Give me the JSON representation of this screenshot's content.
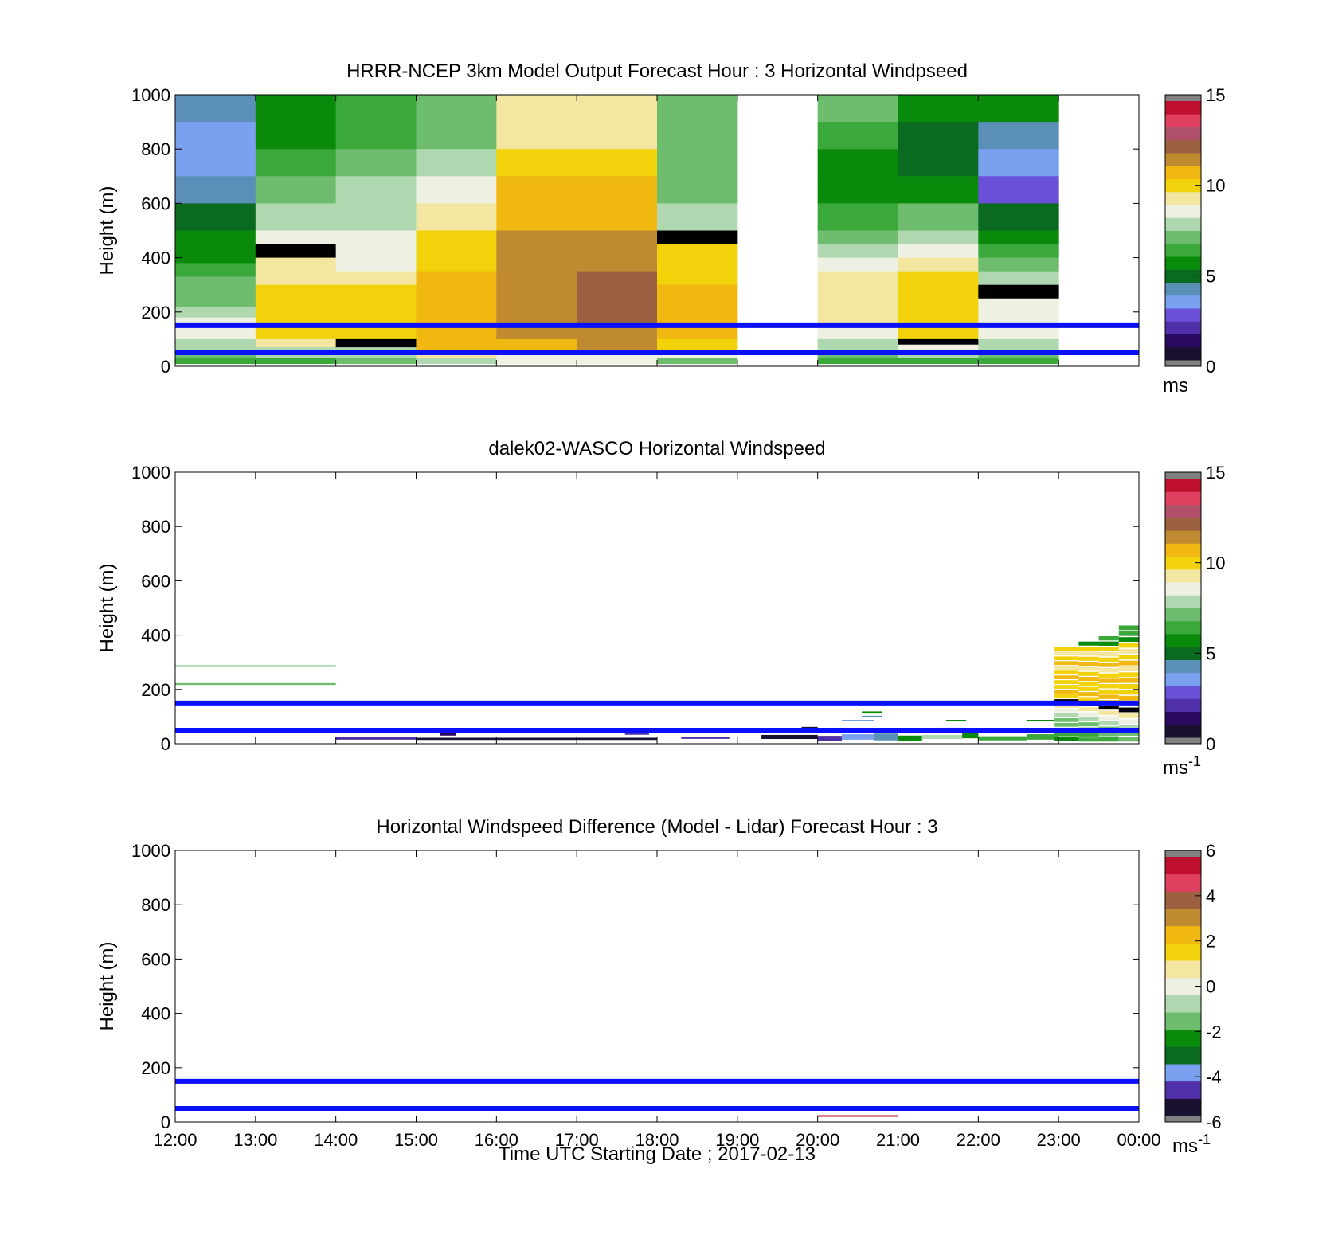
{
  "colors": {
    "line": "#0a10ff",
    "windspeed_scale": [
      "#1a1030",
      "#2a0a60",
      "#5030a8",
      "#6a50d8",
      "#7aa0f0",
      "#5a90b8",
      "#0a6a20",
      "#0a8a0a",
      "#3aa83a",
      "#6ebc6e",
      "#b0d8b0",
      "#eef0e2",
      "#f2e6a0",
      "#f2d20a",
      "#f0b810",
      "#c08a30",
      "#9a6040",
      "#b0506a",
      "#e04060",
      "#c01030"
    ],
    "difference_scale": [
      "#1a1030",
      "#5030a8",
      "#7aa0f0",
      "#0a6a20",
      "#0a8a0a",
      "#6ebc6e",
      "#b0d8b0",
      "#eef0e2",
      "#f2e6a0",
      "#f2d20a",
      "#f0b810",
      "#c08a30",
      "#9a6040",
      "#e04060",
      "#c01030"
    ]
  },
  "x_ticks": [
    "12:00",
    "13:00",
    "14:00",
    "15:00",
    "16:00",
    "17:00",
    "18:00",
    "19:00",
    "20:00",
    "21:00",
    "22:00",
    "23:00",
    "00:00"
  ],
  "y_ticks": [
    "0",
    "200",
    "400",
    "600",
    "800",
    "1000"
  ],
  "x_label": "Time UTC  Starting Date ; 2017-02-13",
  "chart_data": [
    {
      "type": "heatmap",
      "title": "HRRR-NCEP 3km Model Output   Forecast Hour : 3 Horizontal Windpseed",
      "ylabel": "Height (m)",
      "xlim": [
        "12:00",
        "00:00"
      ],
      "ylim": [
        0,
        1000
      ],
      "colorbar": {
        "range": [
          0,
          15
        ],
        "ticks": [
          "0",
          "5",
          "10",
          "15"
        ],
        "unit": "ms"
      },
      "reference_lines_m": [
        150,
        50
      ],
      "hour_columns": [
        {
          "hour": "12:00",
          "segments": [
            [
              900,
              1000,
              5
            ],
            [
              800,
              900,
              4
            ],
            [
              700,
              800,
              4
            ],
            [
              600,
              700,
              5
            ],
            [
              500,
              600,
              6
            ],
            [
              440,
              500,
              7
            ],
            [
              380,
              440,
              7
            ],
            [
              330,
              380,
              8
            ],
            [
              280,
              330,
              9
            ],
            [
              220,
              280,
              9
            ],
            [
              180,
              220,
              10
            ],
            [
              100,
              180,
              11
            ],
            [
              60,
              100,
              10
            ],
            [
              30,
              60,
              9
            ],
            [
              10,
              30,
              8
            ]
          ]
        },
        {
          "hour": "13:00",
          "segments": [
            [
              800,
              1000,
              7
            ],
            [
              700,
              800,
              8
            ],
            [
              600,
              700,
              9
            ],
            [
              500,
              600,
              10
            ],
            [
              450,
              500,
              11
            ],
            [
              400,
              450,
              20
            ],
            [
              350,
              400,
              12
            ],
            [
              300,
              350,
              12
            ],
            [
              250,
              300,
              13
            ],
            [
              180,
              250,
              13
            ],
            [
              100,
              180,
              13
            ],
            [
              70,
              100,
              12
            ],
            [
              30,
              70,
              10
            ],
            [
              10,
              30,
              8
            ]
          ]
        },
        {
          "hour": "14:00",
          "segments": [
            [
              900,
              1000,
              8
            ],
            [
              800,
              900,
              8
            ],
            [
              700,
              800,
              9
            ],
            [
              600,
              700,
              10
            ],
            [
              500,
              600,
              10
            ],
            [
              450,
              500,
              11
            ],
            [
              400,
              450,
              11
            ],
            [
              350,
              400,
              11
            ],
            [
              300,
              350,
              12
            ],
            [
              250,
              300,
              13
            ],
            [
              100,
              250,
              13
            ],
            [
              70,
              100,
              20
            ],
            [
              30,
              70,
              10
            ],
            [
              10,
              30,
              9
            ]
          ]
        },
        {
          "hour": "15:00",
          "segments": [
            [
              900,
              1000,
              9
            ],
            [
              800,
              900,
              9
            ],
            [
              700,
              800,
              10
            ],
            [
              600,
              700,
              11
            ],
            [
              500,
              600,
              12
            ],
            [
              400,
              500,
              13
            ],
            [
              350,
              400,
              13
            ],
            [
              300,
              350,
              14
            ],
            [
              200,
              300,
              14
            ],
            [
              100,
              200,
              14
            ],
            [
              60,
              100,
              14
            ],
            [
              30,
              60,
              12
            ],
            [
              10,
              30,
              10
            ]
          ]
        },
        {
          "hour": "16:00",
          "segments": [
            [
              900,
              1000,
              12
            ],
            [
              800,
              900,
              12
            ],
            [
              700,
              800,
              13
            ],
            [
              600,
              700,
              14
            ],
            [
              500,
              600,
              14
            ],
            [
              400,
              500,
              15
            ],
            [
              300,
              400,
              15
            ],
            [
              200,
              300,
              15
            ],
            [
              100,
              200,
              15
            ],
            [
              50,
              100,
              14
            ],
            [
              10,
              50,
              11
            ]
          ]
        },
        {
          "hour": "17:00",
          "segments": [
            [
              900,
              1000,
              12
            ],
            [
              800,
              900,
              12
            ],
            [
              700,
              800,
              13
            ],
            [
              600,
              700,
              14
            ],
            [
              500,
              600,
              14
            ],
            [
              450,
              500,
              15
            ],
            [
              350,
              450,
              15
            ],
            [
              250,
              350,
              16
            ],
            [
              150,
              250,
              16
            ],
            [
              60,
              150,
              15
            ],
            [
              10,
              60,
              11
            ]
          ]
        },
        {
          "hour": "18:00",
          "segments": [
            [
              900,
              1000,
              9
            ],
            [
              800,
              900,
              9
            ],
            [
              700,
              800,
              9
            ],
            [
              600,
              700,
              9
            ],
            [
              500,
              600,
              10
            ],
            [
              450,
              500,
              20
            ],
            [
              400,
              450,
              13
            ],
            [
              300,
              400,
              13
            ],
            [
              200,
              300,
              14
            ],
            [
              100,
              200,
              14
            ],
            [
              60,
              100,
              13
            ],
            [
              30,
              60,
              11
            ],
            [
              10,
              30,
              9
            ]
          ]
        },
        {
          "hour": "19:00",
          "segments": []
        },
        {
          "hour": "20:00",
          "segments": [
            [
              900,
              1000,
              9
            ],
            [
              800,
              900,
              8
            ],
            [
              700,
              800,
              7
            ],
            [
              600,
              700,
              7
            ],
            [
              500,
              600,
              8
            ],
            [
              450,
              500,
              9
            ],
            [
              400,
              450,
              10
            ],
            [
              350,
              400,
              11
            ],
            [
              300,
              350,
              12
            ],
            [
              150,
              300,
              12
            ],
            [
              100,
              150,
              11
            ],
            [
              60,
              100,
              10
            ],
            [
              30,
              60,
              9
            ],
            [
              10,
              30,
              8
            ]
          ]
        },
        {
          "hour": "21:00",
          "segments": [
            [
              900,
              1000,
              7
            ],
            [
              800,
              900,
              6
            ],
            [
              700,
              800,
              6
            ],
            [
              600,
              700,
              7
            ],
            [
              500,
              600,
              9
            ],
            [
              450,
              500,
              10
            ],
            [
              400,
              450,
              11
            ],
            [
              350,
              400,
              12
            ],
            [
              300,
              350,
              13
            ],
            [
              100,
              300,
              13
            ],
            [
              80,
              100,
              20
            ],
            [
              50,
              80,
              11
            ],
            [
              30,
              50,
              10
            ],
            [
              10,
              30,
              8
            ]
          ]
        },
        {
          "hour": "22:00",
          "segments": [
            [
              900,
              1000,
              7
            ],
            [
              800,
              900,
              5
            ],
            [
              700,
              800,
              4
            ],
            [
              600,
              700,
              3
            ],
            [
              500,
              600,
              6
            ],
            [
              450,
              500,
              7
            ],
            [
              400,
              450,
              8
            ],
            [
              350,
              400,
              9
            ],
            [
              300,
              350,
              10
            ],
            [
              250,
              300,
              20
            ],
            [
              150,
              250,
              11
            ],
            [
              100,
              150,
              11
            ],
            [
              60,
              100,
              10
            ],
            [
              30,
              60,
              9
            ],
            [
              10,
              30,
              8
            ]
          ]
        },
        {
          "hour": "23:00",
          "segments": []
        }
      ]
    },
    {
      "type": "heatmap",
      "title": "dalek02-WASCO  Horizontal Windspeed",
      "ylabel": "Height (m)",
      "xlim": [
        "12:00",
        "00:00"
      ],
      "ylim": [
        0,
        1000
      ],
      "colorbar": {
        "range": [
          0,
          15
        ],
        "ticks": [
          "0",
          "5",
          "10",
          "15"
        ],
        "unit": "ms",
        "unit_exp": "-1"
      },
      "reference_lines_m": [
        150,
        50
      ],
      "traces": [
        {
          "t0": 0.0,
          "t1": 2.0,
          "h": 287,
          "dh": 4,
          "c": 9
        },
        {
          "t0": 0.0,
          "t1": 2.0,
          "h": 220,
          "dh": 7,
          "c": 9
        },
        {
          "t0": 2.0,
          "t1": 3.0,
          "h": 20,
          "dh": 10,
          "c": 2
        },
        {
          "t0": 3.3,
          "t1": 3.5,
          "h": 35,
          "dh": 10,
          "c": 1
        },
        {
          "t0": 3.0,
          "t1": 6.0,
          "h": 18,
          "dh": 8,
          "c": 0
        },
        {
          "t0": 5.6,
          "t1": 5.9,
          "h": 38,
          "dh": 10,
          "c": 2
        },
        {
          "t0": 6.3,
          "t1": 6.9,
          "h": 22,
          "dh": 8,
          "c": 2
        },
        {
          "t0": 7.3,
          "t1": 8.0,
          "h": 25,
          "dh": 15,
          "c": 0
        },
        {
          "t0": 7.8,
          "t1": 8.0,
          "h": 58,
          "dh": 8,
          "c": 0
        },
        {
          "t0": 8.0,
          "t1": 8.3,
          "h": 20,
          "dh": 18,
          "c": 2
        },
        {
          "t0": 8.3,
          "t1": 8.7,
          "h": 25,
          "dh": 20,
          "c": 4
        },
        {
          "t0": 8.3,
          "t1": 8.7,
          "h": 85,
          "dh": 6,
          "c": 4
        },
        {
          "t0": 8.55,
          "t1": 8.8,
          "h": 115,
          "dh": 8,
          "c": 7
        },
        {
          "t0": 8.55,
          "t1": 8.8,
          "h": 100,
          "dh": 6,
          "c": 5
        },
        {
          "t0": 8.7,
          "t1": 9.0,
          "h": 25,
          "dh": 25,
          "c": 5
        },
        {
          "t0": 9.0,
          "t1": 9.3,
          "h": 20,
          "dh": 20,
          "c": 7
        },
        {
          "t0": 9.3,
          "t1": 9.8,
          "h": 25,
          "dh": 15,
          "c": 10
        },
        {
          "t0": 9.5,
          "t1": 9.8,
          "h": 55,
          "dh": 8,
          "c": 4
        },
        {
          "t0": 9.6,
          "t1": 9.85,
          "h": 85,
          "dh": 6,
          "c": 7
        },
        {
          "t0": 9.8,
          "t1": 10.0,
          "h": 30,
          "dh": 20,
          "c": 7
        },
        {
          "t0": 10.0,
          "t1": 10.6,
          "h": 20,
          "dh": 15,
          "c": 8
        },
        {
          "t0": 10.6,
          "t1": 11.0,
          "h": 25,
          "dh": 20,
          "c": 8
        },
        {
          "t0": 10.6,
          "t1": 11.0,
          "h": 85,
          "dh": 6,
          "c": 7
        }
      ],
      "profiles": [
        {
          "t0": 10.95,
          "t1": 11.25,
          "top": 360,
          "bottom": 10,
          "shift": 0
        },
        {
          "t0": 11.25,
          "t1": 11.5,
          "top": 380,
          "bottom": 8,
          "shift": 1
        },
        {
          "t0": 11.5,
          "t1": 11.75,
          "top": 400,
          "bottom": 8,
          "shift": 2
        },
        {
          "t0": 11.75,
          "t1": 12.0,
          "top": 440,
          "bottom": 8,
          "shift": 3
        }
      ]
    },
    {
      "type": "heatmap",
      "title": "Horizontal Windspeed Difference (Model - Lidar) Forecast Hour : 3",
      "ylabel": "Height (m)",
      "xlabel": "Time UTC  Starting Date ; 2017-02-13",
      "xlim": [
        "12:00",
        "00:00"
      ],
      "ylim": [
        0,
        1000
      ],
      "colorbar": {
        "range": [
          -6,
          6
        ],
        "ticks": [
          "-6",
          "-4",
          "-2",
          "0",
          "2",
          "4",
          "6"
        ],
        "unit": "ms",
        "unit_exp": "-1"
      },
      "reference_lines_m": [
        150,
        50
      ],
      "traces": [
        {
          "t0": 8.0,
          "t1": 9.0,
          "h": 22,
          "dh": 6,
          "c": 14
        }
      ]
    }
  ]
}
